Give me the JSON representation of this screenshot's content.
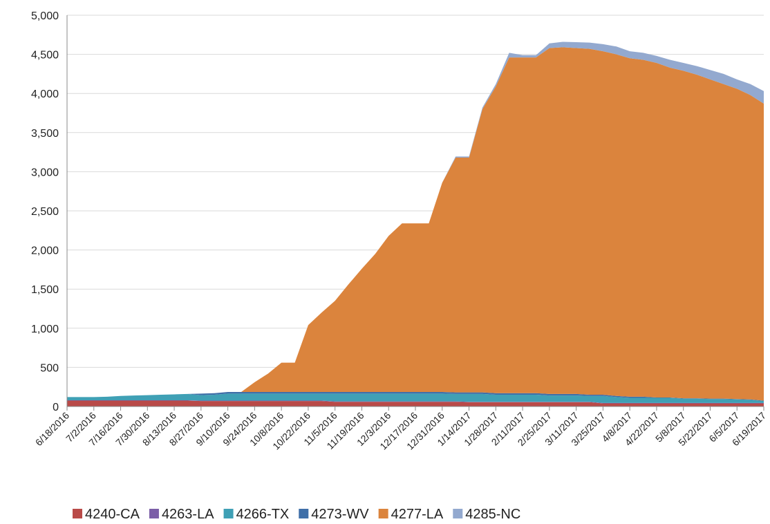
{
  "chart_data": {
    "type": "stacked_area",
    "categories": [
      "6/18/2016",
      null,
      "7/2/2016",
      null,
      "7/16/2016",
      null,
      "7/30/2016",
      null,
      "8/13/2016",
      null,
      "8/27/2016",
      null,
      "9/10/2016",
      null,
      "9/24/2016",
      null,
      "10/8/2016",
      null,
      "10/22/2016",
      null,
      "11/5/2016",
      null,
      "11/19/2016",
      null,
      "12/3/2016",
      null,
      "12/17/2016",
      null,
      "12/31/2016",
      null,
      "1/14/2017",
      null,
      "1/28/2017",
      null,
      "2/11/2017",
      null,
      "2/25/2017",
      null,
      "3/11/2017",
      null,
      "3/25/2017",
      null,
      "4/8/2017",
      null,
      "4/22/2017",
      null,
      "5/8/2017",
      null,
      "5/22/2017",
      null,
      "6/5/2017",
      null,
      "6/19/2017"
    ],
    "series": [
      {
        "name": "4240-CA",
        "color": "#b94a48",
        "values": [
          75,
          75,
          75,
          75,
          75,
          75,
          75,
          75,
          75,
          75,
          70,
          70,
          70,
          70,
          70,
          70,
          70,
          70,
          70,
          70,
          60,
          60,
          60,
          60,
          60,
          60,
          60,
          60,
          60,
          60,
          55,
          55,
          55,
          55,
          55,
          55,
          55,
          55,
          55,
          55,
          40,
          40,
          40,
          40,
          40,
          40,
          40,
          40,
          40,
          40,
          40,
          40,
          40
        ]
      },
      {
        "name": "4263-LA",
        "color": "#7b5ea7",
        "values": [
          5,
          5,
          5,
          5,
          5,
          5,
          5,
          5,
          5,
          5,
          5,
          5,
          5,
          5,
          5,
          5,
          5,
          5,
          5,
          5,
          5,
          5,
          5,
          5,
          5,
          5,
          5,
          5,
          5,
          5,
          5,
          5,
          5,
          5,
          5,
          5,
          5,
          5,
          5,
          5,
          5,
          5,
          5,
          5,
          5,
          5,
          5,
          5,
          5,
          5,
          5,
          5,
          5
        ]
      },
      {
        "name": "4266-TX",
        "color": "#3fa0b5",
        "values": [
          40,
          40,
          40,
          45,
          55,
          60,
          65,
          70,
          75,
          80,
          70,
          75,
          90,
          90,
          90,
          90,
          90,
          90,
          90,
          90,
          100,
          100,
          100,
          100,
          100,
          100,
          100,
          100,
          100,
          95,
          100,
          100,
          90,
          90,
          90,
          90,
          80,
          80,
          80,
          75,
          90,
          75,
          65,
          65,
          65,
          65,
          55,
          55,
          50,
          50,
          45,
          40,
          25
        ]
      },
      {
        "name": "4273-WV",
        "color": "#3f6fa8",
        "values": [
          0,
          0,
          0,
          0,
          0,
          0,
          0,
          0,
          0,
          0,
          20,
          20,
          20,
          20,
          20,
          20,
          20,
          20,
          20,
          20,
          20,
          20,
          20,
          20,
          20,
          20,
          20,
          20,
          20,
          20,
          20,
          20,
          20,
          20,
          20,
          20,
          20,
          20,
          20,
          15,
          15,
          15,
          15,
          15,
          5,
          5,
          5,
          5,
          5,
          5,
          5,
          5,
          5
        ]
      },
      {
        "name": "4277-LA",
        "color": "#db843d",
        "values": [
          0,
          0,
          0,
          0,
          0,
          0,
          0,
          0,
          0,
          0,
          0,
          0,
          0,
          0,
          125,
          235,
          375,
          375,
          855,
          1015,
          1165,
          1375,
          1575,
          1765,
          1995,
          2155,
          2155,
          2155,
          2675,
          3000,
          3000,
          3620,
          3920,
          4290,
          4290,
          4290,
          4420,
          4430,
          4420,
          4420,
          4390,
          4365,
          4325,
          4305,
          4275,
          4215,
          4185,
          4135,
          4080,
          4020,
          3965,
          3890,
          3795
        ]
      },
      {
        "name": "4285-NC",
        "color": "#93a9cf",
        "values": [
          0,
          0,
          0,
          0,
          0,
          0,
          0,
          0,
          0,
          0,
          0,
          0,
          0,
          0,
          0,
          0,
          0,
          0,
          0,
          0,
          0,
          0,
          0,
          0,
          0,
          0,
          0,
          0,
          0,
          15,
          15,
          20,
          30,
          60,
          30,
          30,
          60,
          70,
          75,
          80,
          90,
          100,
          90,
          90,
          90,
          100,
          100,
          110,
          120,
          130,
          120,
          140,
          160
        ]
      }
    ],
    "ylim": [
      0,
      5000
    ],
    "yticks": [
      0,
      {
        "value": 500,
        "label": "500"
      },
      {
        "value": 1000,
        "label": "1,000"
      },
      {
        "value": 1500,
        "label": "1,500"
      },
      {
        "value": 2000,
        "label": "2,000"
      },
      {
        "value": 2500,
        "label": "2,500"
      },
      {
        "value": 3000,
        "label": "3,000"
      },
      {
        "value": 3500,
        "label": "3,500"
      },
      {
        "value": 4000,
        "label": "4,000"
      },
      {
        "value": 4500,
        "label": "4,500"
      },
      {
        "value": 5000,
        "label": "5,000"
      }
    ],
    "grid": true,
    "legend": "bottom"
  }
}
